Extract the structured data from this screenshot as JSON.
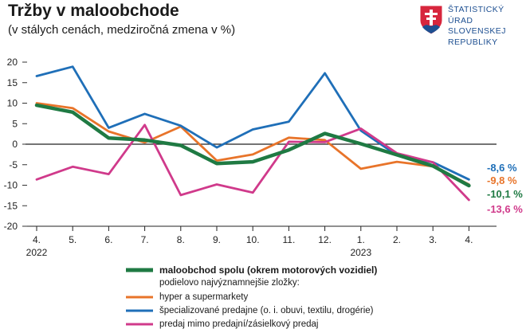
{
  "header": {
    "title": "Tržby v maloobchode",
    "subtitle": "(v stálych cenách, medziročná zmena v %)"
  },
  "logo": {
    "name": "shield-emblem-icon",
    "lines": [
      "ŠTATISTICKÝ",
      "ÚRAD",
      "SLOVENSKEJ",
      "REPUBLIKY"
    ],
    "color": "#1d4f91"
  },
  "legend": {
    "note": "podielovo najvýznamnejšie zložky:"
  },
  "chart_data": {
    "type": "line",
    "categories": [
      "4.",
      "5.",
      "6.",
      "7.",
      "8.",
      "9.",
      "10.",
      "11.",
      "12.",
      "1.",
      "2.",
      "3.",
      "4."
    ],
    "year_labels": [
      {
        "index": 0,
        "label": "2022"
      },
      {
        "index": 9,
        "label": "2023"
      }
    ],
    "ylim": [
      -20,
      20
    ],
    "yticks": [
      20,
      15,
      10,
      5,
      0,
      -5,
      -10,
      -15,
      -20
    ],
    "series": [
      {
        "name": "maloobchod spolu (okrem motorových vozidiel)",
        "color": "#1f7a43",
        "width": 4.5,
        "values": [
          9.5,
          7.8,
          1.5,
          1.0,
          -0.3,
          -4.7,
          -4.3,
          -1.4,
          2.6,
          0.1,
          -2.6,
          -5.3,
          -10.1
        ],
        "end_label": "-10,1 %"
      },
      {
        "name": "hyper a supermarkety",
        "color": "#e8742a",
        "width": 2.8,
        "values": [
          10.0,
          8.8,
          3.1,
          0.4,
          4.3,
          -4.0,
          -2.5,
          1.6,
          1.0,
          -6.0,
          -4.3,
          -5.4,
          -9.8
        ],
        "end_label": "-9,8 %"
      },
      {
        "name": "špecializované predajne (o. i. obuvi, textilu, drogérie)",
        "color": "#1f6fb8",
        "width": 2.8,
        "values": [
          16.6,
          18.9,
          4.0,
          7.4,
          4.5,
          -0.8,
          3.6,
          5.5,
          17.3,
          3.3,
          -2.7,
          -4.4,
          -8.6
        ],
        "end_label": "-8,6 %"
      },
      {
        "name": "predaj mimo predajní/zásielkový predaj",
        "color": "#d03a8b",
        "width": 2.8,
        "values": [
          -8.6,
          -5.5,
          -7.3,
          4.7,
          -12.4,
          -9.8,
          -11.8,
          0.6,
          0.5,
          3.8,
          -2.2,
          -4.4,
          -13.6
        ],
        "end_label": "-13,6 %"
      }
    ]
  }
}
